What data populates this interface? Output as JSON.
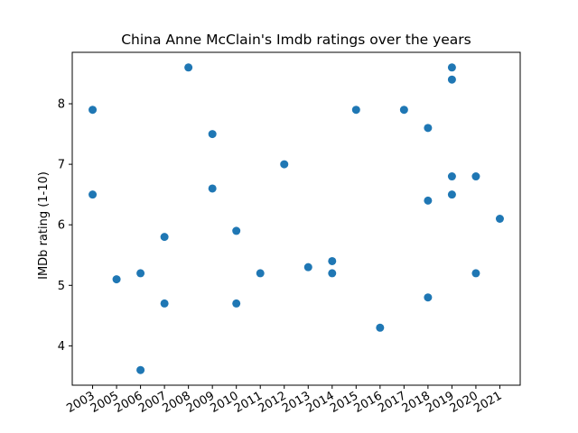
{
  "chart_data": {
    "type": "scatter",
    "title": "China Anne McClain's Imdb ratings over the years",
    "xlabel": "",
    "ylabel": "IMDb rating (1-10)",
    "x_categories": [
      "2003",
      "2005",
      "2006",
      "2007",
      "2008",
      "2009",
      "2010",
      "2011",
      "2012",
      "2013",
      "2014",
      "2015",
      "2016",
      "2017",
      "2018",
      "2019",
      "2020",
      "2021"
    ],
    "yticks": [
      4,
      5,
      6,
      7,
      8
    ],
    "ylim": [
      3.35,
      8.85
    ],
    "grid": false,
    "marker_color": "#1f77b4",
    "points": [
      {
        "x": "2003",
        "y": 7.9
      },
      {
        "x": "2003",
        "y": 6.5
      },
      {
        "x": "2005",
        "y": 5.1
      },
      {
        "x": "2006",
        "y": 5.2
      },
      {
        "x": "2006",
        "y": 3.6
      },
      {
        "x": "2007",
        "y": 5.8
      },
      {
        "x": "2007",
        "y": 4.7
      },
      {
        "x": "2008",
        "y": 8.6
      },
      {
        "x": "2009",
        "y": 7.5
      },
      {
        "x": "2009",
        "y": 6.6
      },
      {
        "x": "2010",
        "y": 5.9
      },
      {
        "x": "2010",
        "y": 4.7
      },
      {
        "x": "2011",
        "y": 5.2
      },
      {
        "x": "2012",
        "y": 7.0
      },
      {
        "x": "2013",
        "y": 5.3
      },
      {
        "x": "2014",
        "y": 5.4
      },
      {
        "x": "2014",
        "y": 5.2
      },
      {
        "x": "2015",
        "y": 7.9
      },
      {
        "x": "2016",
        "y": 4.3
      },
      {
        "x": "2017",
        "y": 7.9
      },
      {
        "x": "2018",
        "y": 7.6
      },
      {
        "x": "2018",
        "y": 6.4
      },
      {
        "x": "2018",
        "y": 4.8
      },
      {
        "x": "2019",
        "y": 8.6
      },
      {
        "x": "2019",
        "y": 8.4
      },
      {
        "x": "2019",
        "y": 6.8
      },
      {
        "x": "2019",
        "y": 6.5
      },
      {
        "x": "2020",
        "y": 6.8
      },
      {
        "x": "2020",
        "y": 5.2
      },
      {
        "x": "2021",
        "y": 6.1
      }
    ]
  }
}
